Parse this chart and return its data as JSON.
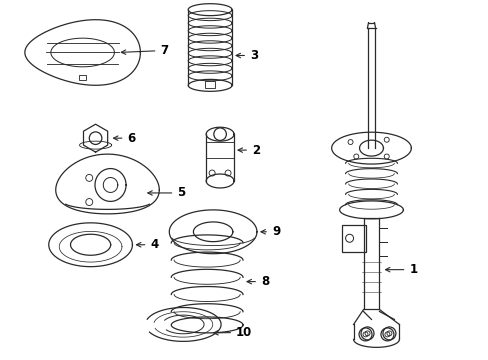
{
  "background_color": "#ffffff",
  "line_color": "#2a2a2a",
  "label_color": "#000000",
  "figure_width": 4.89,
  "figure_height": 3.6,
  "dpi": 100,
  "font_size": 8.5,
  "lw": 0.9
}
